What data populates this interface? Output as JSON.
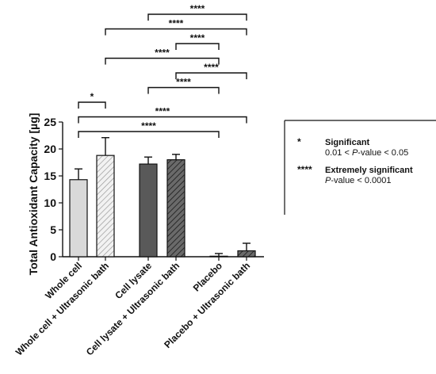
{
  "chart_data": {
    "type": "bar",
    "ylabel": "Total Antioxidant Capacity [µg]",
    "ylim": [
      0,
      25
    ],
    "yticks": [
      0,
      5,
      10,
      15,
      20,
      25
    ],
    "categories": [
      "Whole cell",
      "Whole cell + Ultrasonic bath",
      "Cell lysate",
      "Cell lysate + Ultrasonic bath",
      "Placebo",
      "Placebo + Ultrasonic bath"
    ],
    "values": [
      14.3,
      18.8,
      17.2,
      18.0,
      0.1,
      1.1
    ],
    "errors": [
      2.0,
      3.3,
      1.3,
      1.0,
      0.5,
      1.4
    ],
    "bar_styles": [
      {
        "fill": "#d9d9d9",
        "pattern": "none"
      },
      {
        "fill": "#eeeeee",
        "pattern": "light-hatch"
      },
      {
        "fill": "#595959",
        "pattern": "none"
      },
      {
        "fill": "#595959",
        "pattern": "dark-hatch"
      },
      {
        "fill": "#ffffff",
        "pattern": "none"
      },
      {
        "fill": "#ffffff",
        "pattern": "dark-hatch"
      }
    ],
    "comparisons": [
      {
        "from": 2,
        "to": 5,
        "label": "****"
      },
      {
        "from": 1,
        "to": 5,
        "label": "****"
      },
      {
        "from": 3,
        "to": 4,
        "label": "****"
      },
      {
        "from": 1,
        "to": 4,
        "label": "****"
      },
      {
        "from": 3,
        "to": 5,
        "label": "****"
      },
      {
        "from": 2,
        "to": 4,
        "label": "****"
      },
      {
        "from": 0,
        "to": 1,
        "label": "*"
      },
      {
        "from": 0,
        "to": 5,
        "label": "****"
      },
      {
        "from": 0,
        "to": 4,
        "label": "****"
      }
    ],
    "legend": [
      {
        "symbol": "*",
        "title": "Significant",
        "desc_pre": "0.01 < ",
        "desc_italic": "P",
        "desc_post": "-value < 0.05"
      },
      {
        "symbol": "****",
        "title": "Extremely significant",
        "desc_pre": "",
        "desc_italic": "P",
        "desc_post": "-value < 0.0001"
      }
    ]
  }
}
